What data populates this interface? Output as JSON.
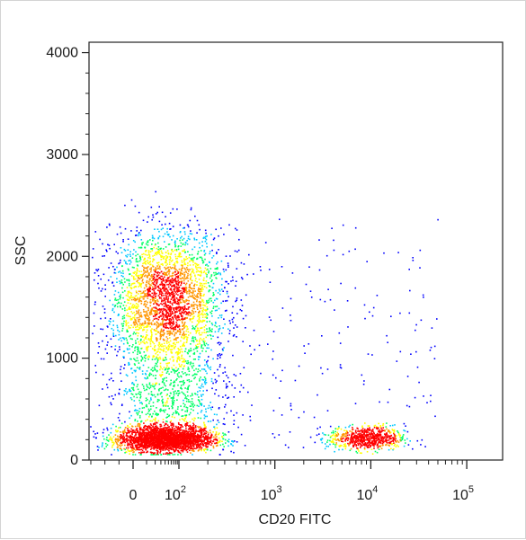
{
  "chart_data": {
    "type": "scatter",
    "subtype": "flow-cytometry-density-dot-plot",
    "title": "",
    "xlabel": "CD20 FITC",
    "ylabel": "SSC",
    "x_scale": "biexponential",
    "xlim": [
      -30,
      100000
    ],
    "ylim": [
      0,
      4096
    ],
    "grid": false,
    "legend": "none",
    "x_tick_labels": [
      {
        "value": 0,
        "base": "0",
        "exp": ""
      },
      {
        "value": 100,
        "base": "10",
        "exp": "2"
      },
      {
        "value": 1000,
        "base": "10",
        "exp": "3"
      },
      {
        "value": 10000,
        "base": "10",
        "exp": "4"
      },
      {
        "value": 100000,
        "base": "10",
        "exp": "5"
      }
    ],
    "y_ticks": [
      0,
      1000,
      2000,
      3000,
      4000
    ],
    "y_tick_labels": [
      "0",
      "1000",
      "2000",
      "3000",
      "4000"
    ],
    "density_colors": [
      "#0000ff",
      "#00c8ff",
      "#00ff64",
      "#ffff00",
      "#ff9600",
      "#ff0000"
    ],
    "populations": [
      {
        "name": "lymphocytes",
        "x_center": 40,
        "x_spread_decades": 0.25,
        "y_center": 210,
        "y_spread": 60,
        "density": "high",
        "events": 2600
      },
      {
        "name": "monocytes-granulocytes",
        "x_center": 45,
        "x_spread_decades": 0.3,
        "y_center": 1650,
        "y_spread": 300,
        "density": "medium",
        "events": 2200
      },
      {
        "name": "intermediate",
        "x_center": 50,
        "x_spread_decades": 0.3,
        "y_center": 700,
        "y_spread": 300,
        "density": "low",
        "events": 1200
      },
      {
        "name": "cd20-positive-b-cells",
        "x_center": 9000,
        "x_spread_decades": 0.2,
        "y_center": 220,
        "y_spread": 60,
        "density": "medium",
        "events": 700
      },
      {
        "name": "scattered-events",
        "x_range": [
          -30,
          50000
        ],
        "y_range": [
          100,
          2400
        ],
        "density": "sparse",
        "events": 250
      }
    ]
  }
}
